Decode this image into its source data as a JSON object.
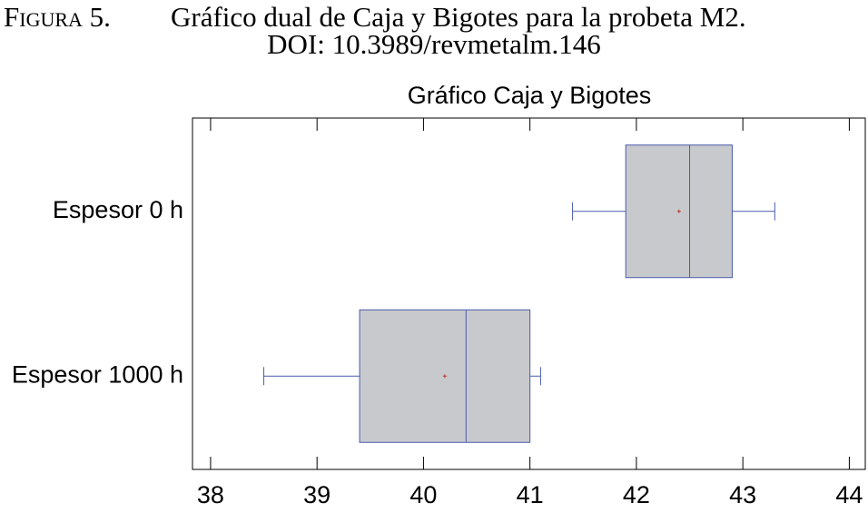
{
  "caption": {
    "label": "Figura 5.",
    "text": "Gráfico dual de Caja y Bigotes para la probeta M2.",
    "doi": "DOI: 10.3989/revmetalm.146"
  },
  "chart_data": {
    "type": "box",
    "title": "Gráfico Caja y Bigotes",
    "orientation": "horizontal",
    "categories": [
      "Espesor 0 h",
      "Espesor 1000 h"
    ],
    "boxes": [
      {
        "min": 41.4,
        "q1": 41.9,
        "median": 42.5,
        "q3": 42.9,
        "max": 43.3,
        "mean": 42.4
      },
      {
        "min": 38.5,
        "q1": 39.4,
        "median": 40.4,
        "q3": 41.0,
        "max": 41.1,
        "mean": 40.2
      }
    ],
    "color": "#c8c9cc",
    "edge_color": "#4a5bad",
    "mean_color": "#c0392b",
    "xlim": [
      37.83,
      44.15
    ],
    "xticks": [
      38,
      39,
      40,
      41,
      42,
      43,
      44
    ]
  }
}
